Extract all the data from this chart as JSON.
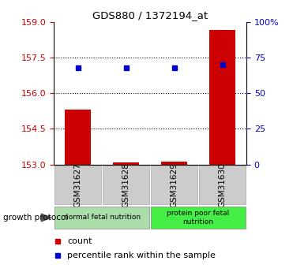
{
  "title": "GDS880 / 1372194_at",
  "samples": [
    "GSM31627",
    "GSM31628",
    "GSM31629",
    "GSM31630"
  ],
  "count_values": [
    155.3,
    153.08,
    153.12,
    158.65
  ],
  "percentile_values": [
    68,
    68,
    68,
    70
  ],
  "ylim_left": [
    153,
    159
  ],
  "yticks_left": [
    153,
    154.5,
    156,
    157.5,
    159
  ],
  "yticks_right": [
    0,
    25,
    50,
    75,
    100
  ],
  "ylim_right": [
    0,
    100
  ],
  "groups": [
    {
      "label": "normal fetal nutrition",
      "samples": [
        0,
        1
      ],
      "color": "#aaddaa"
    },
    {
      "label": "protein poor fetal\nnutrition",
      "samples": [
        2,
        3
      ],
      "color": "#44ee44"
    }
  ],
  "group_protocol_label": "growth protocol",
  "bar_color": "#cc0000",
  "dot_color": "#0000cc",
  "legend_count_label": "count",
  "legend_percentile_label": "percentile rank within the sample",
  "tick_color_left": "#cc0000",
  "tick_color_right": "#0000cc",
  "bar_width": 0.55,
  "sample_box_color": "#cccccc",
  "sample_box_edge": "#aaaaaa"
}
